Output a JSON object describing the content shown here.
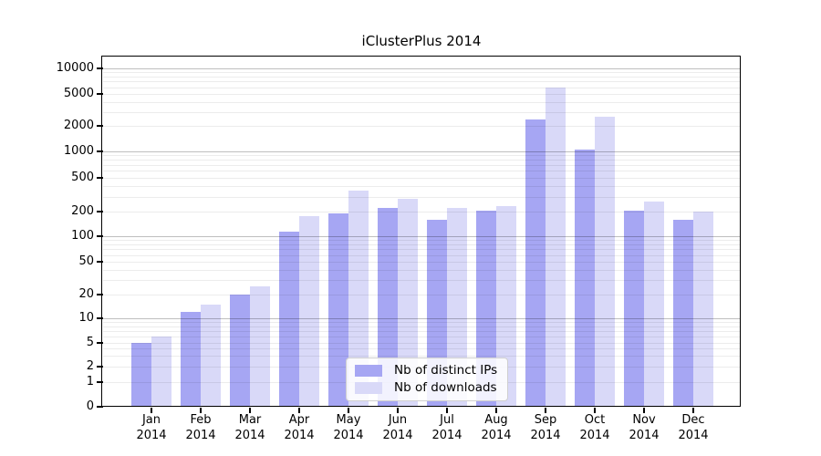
{
  "title": "iClusterPlus 2014",
  "chart_data": {
    "type": "bar",
    "title": "iClusterPlus 2014",
    "categories": [
      {
        "month": "Jan",
        "year": "2014"
      },
      {
        "month": "Feb",
        "year": "2014"
      },
      {
        "month": "Mar",
        "year": "2014"
      },
      {
        "month": "Apr",
        "year": "2014"
      },
      {
        "month": "May",
        "year": "2014"
      },
      {
        "month": "Jun",
        "year": "2014"
      },
      {
        "month": "Jul",
        "year": "2014"
      },
      {
        "month": "Aug",
        "year": "2014"
      },
      {
        "month": "Sep",
        "year": "2014"
      },
      {
        "month": "Oct",
        "year": "2014"
      },
      {
        "month": "Nov",
        "year": "2014"
      },
      {
        "month": "Dec",
        "year": "2014"
      }
    ],
    "series": [
      {
        "name": "Nb of distinct IPs",
        "color": "#a6a6f3",
        "values": [
          5,
          12,
          20,
          115,
          190,
          220,
          160,
          205,
          2400,
          1050,
          205,
          160
        ]
      },
      {
        "name": "Nb of downloads",
        "color": "#d9d9f8",
        "values": [
          6,
          15,
          25,
          175,
          350,
          285,
          220,
          235,
          5900,
          2600,
          265,
          200
        ]
      }
    ],
    "y_ticks": [
      0,
      1,
      2,
      5,
      10,
      20,
      50,
      100,
      200,
      500,
      1000,
      2000,
      5000,
      10000
    ],
    "y_scale": "log",
    "ylim": [
      0,
      10000
    ],
    "grid": true,
    "legend_position": "bottom-center"
  },
  "colors": {
    "bar_dark": "#a6a6f3",
    "bar_light": "#d9d9f8",
    "grid_minor": "#ececec",
    "grid_major": "#c0c0c0",
    "axis": "#000000"
  }
}
